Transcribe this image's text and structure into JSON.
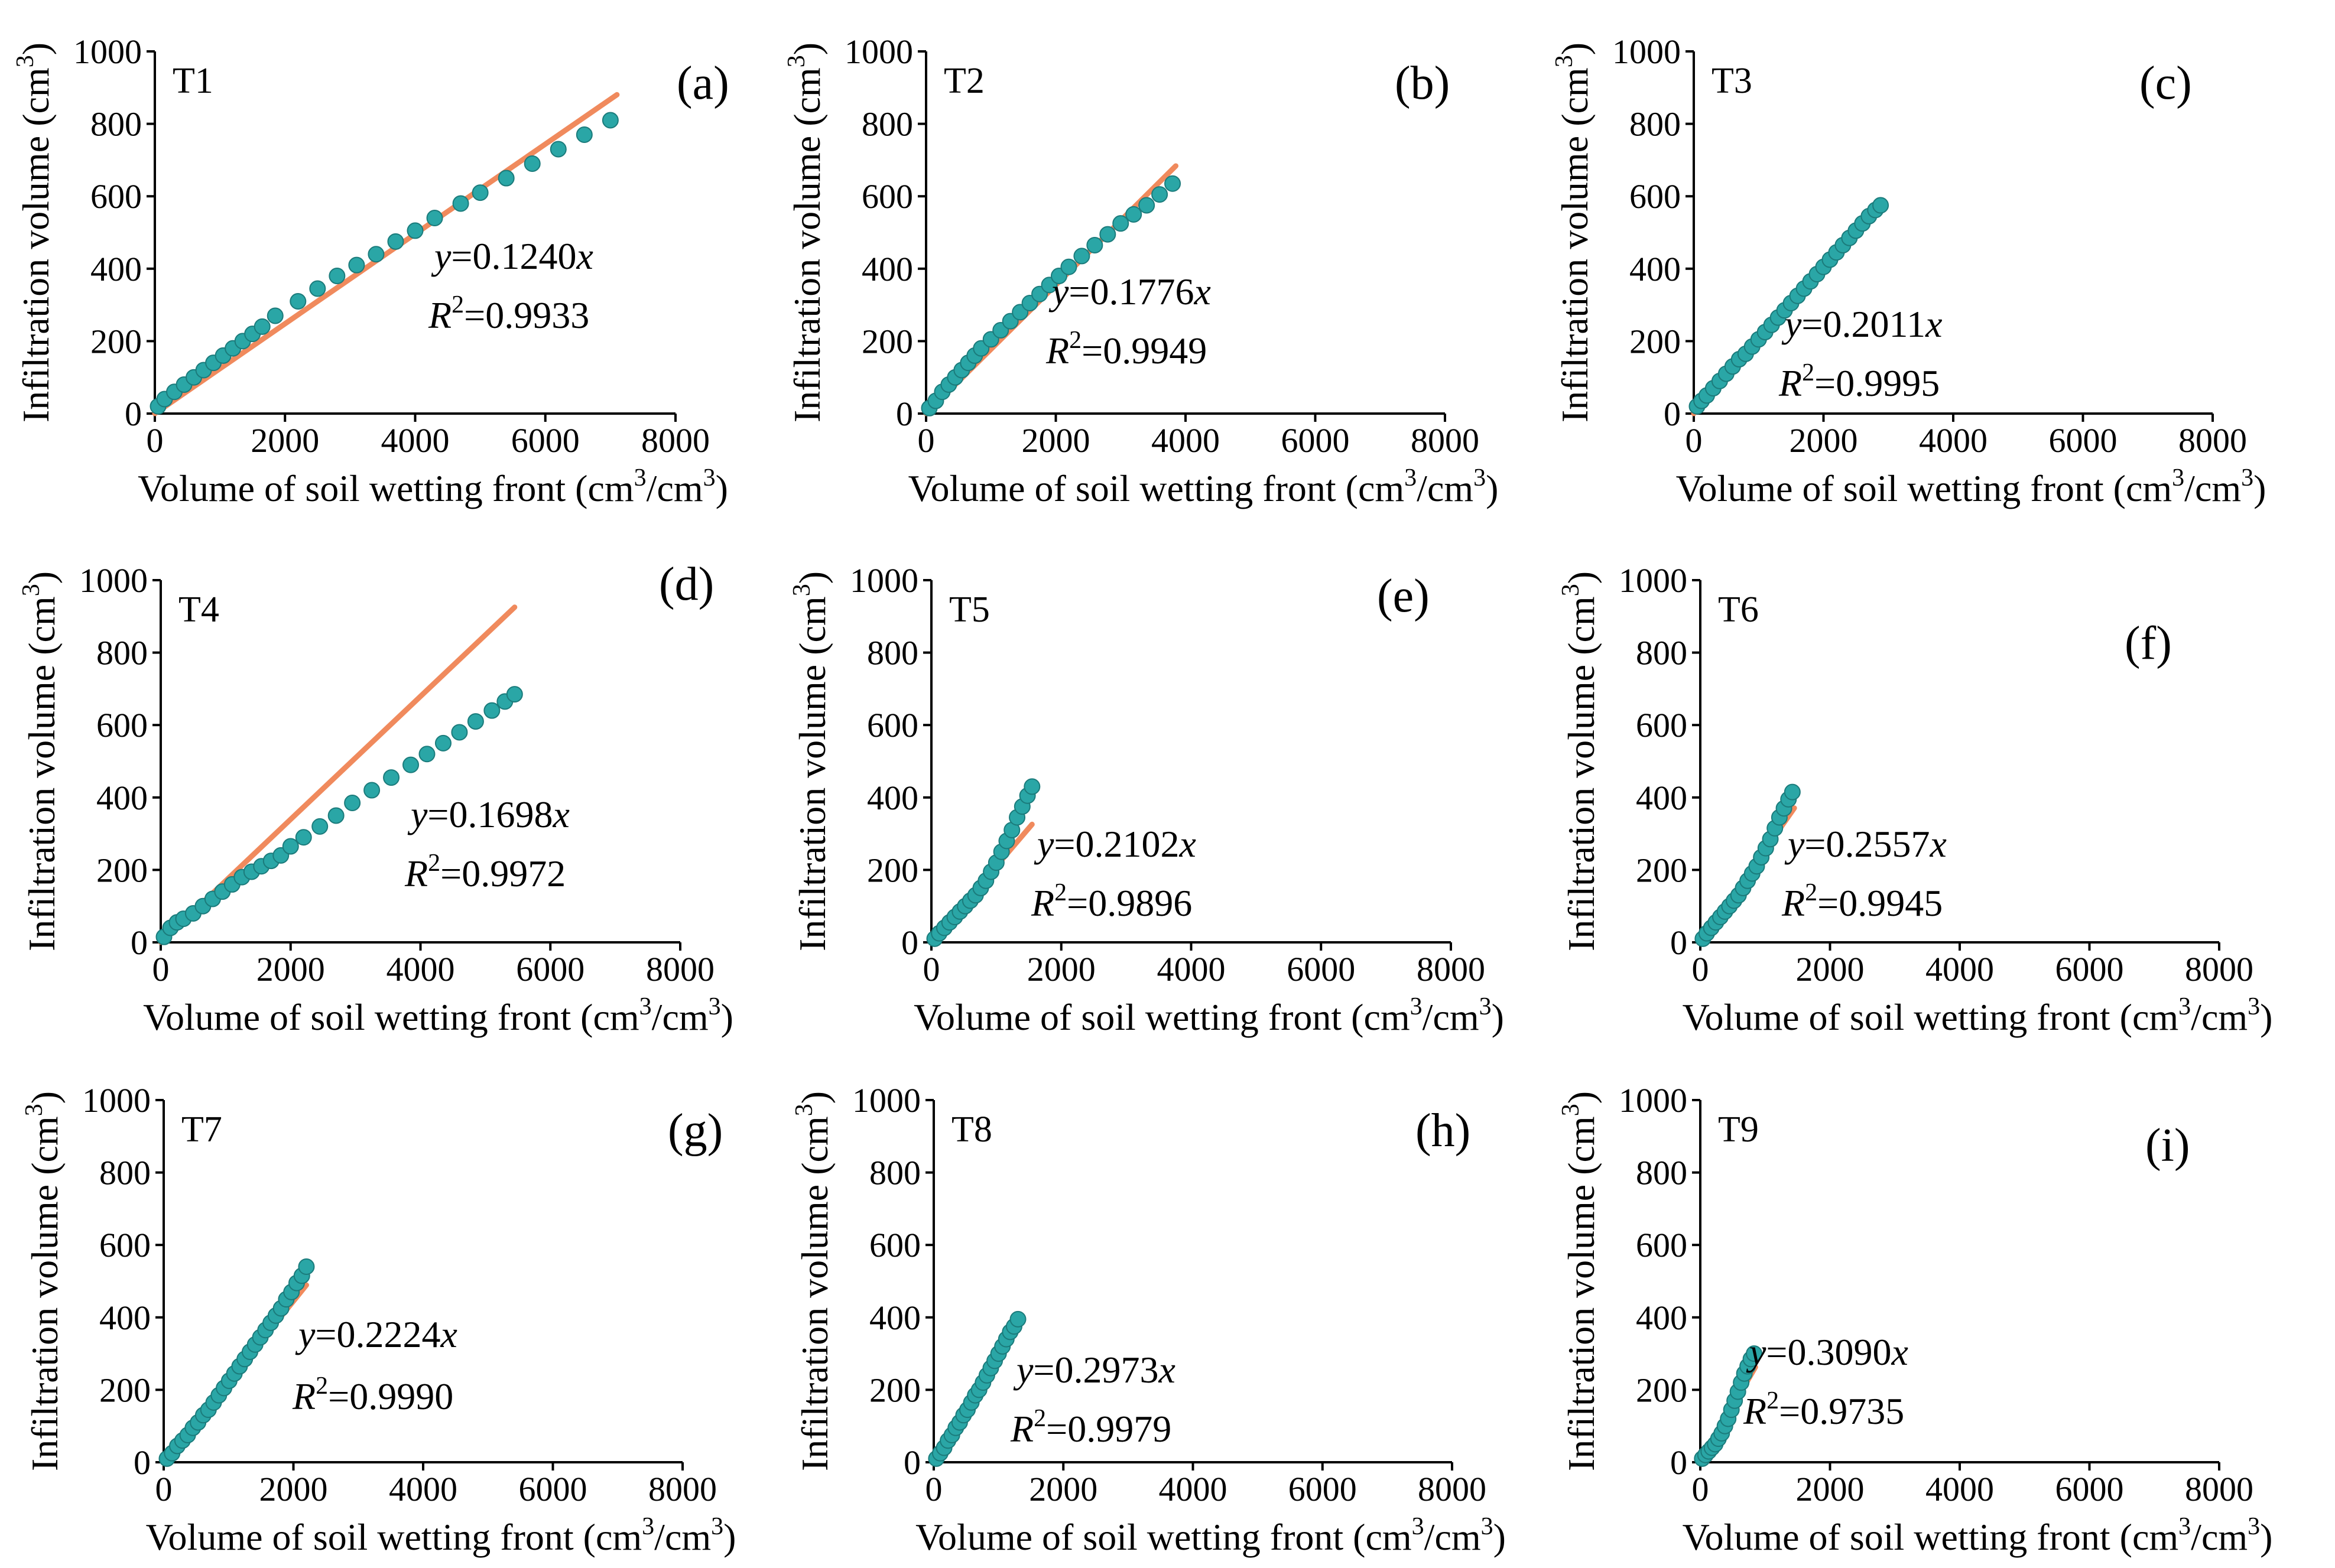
{
  "chart_data": [
    {
      "panel": "(a)",
      "treatment": "T1",
      "type": "scatter",
      "xlabel": "Volume of soil wetting front (cm3/cm3)",
      "ylabel": "Infiltration volume (cm3)",
      "xlim": [
        0,
        8000
      ],
      "ylim": [
        0,
        1000
      ],
      "xticks": [
        0,
        2000,
        4000,
        6000,
        8000
      ],
      "yticks": [
        0,
        200,
        400,
        600,
        800,
        1000
      ],
      "slope": 0.124,
      "equation": "y=0.1240x",
      "r2": "0.9933",
      "fit_x_max": 7100,
      "x": [
        50,
        150,
        300,
        450,
        600,
        750,
        900,
        1050,
        1200,
        1350,
        1500,
        1650,
        1850,
        2200,
        2500,
        2800,
        3100,
        3400,
        3700,
        4000,
        4300,
        4700,
        5000,
        5400,
        5800,
        6200,
        6600,
        7000
      ],
      "y": [
        20,
        40,
        60,
        80,
        100,
        120,
        140,
        160,
        180,
        200,
        220,
        240,
        270,
        310,
        345,
        380,
        410,
        440,
        475,
        505,
        540,
        580,
        610,
        650,
        690,
        730,
        770,
        810
      ]
    },
    {
      "panel": "(b)",
      "treatment": "T2",
      "type": "scatter",
      "xlabel": "Volume of soil wetting front (cm3/cm3)",
      "ylabel": "Infiltration volume (cm3)",
      "xlim": [
        0,
        8000
      ],
      "ylim": [
        0,
        1000
      ],
      "xticks": [
        0,
        2000,
        4000,
        6000,
        8000
      ],
      "yticks": [
        0,
        200,
        400,
        600,
        800,
        1000
      ],
      "slope": 0.1776,
      "equation": "y=0.1776x",
      "r2": "0.9949",
      "fit_x_max": 3850,
      "x": [
        50,
        150,
        250,
        350,
        450,
        550,
        650,
        750,
        850,
        1000,
        1150,
        1300,
        1450,
        1600,
        1750,
        1900,
        2050,
        2200,
        2400,
        2600,
        2800,
        3000,
        3200,
        3400,
        3600,
        3800
      ],
      "y": [
        15,
        35,
        60,
        80,
        100,
        120,
        140,
        160,
        180,
        205,
        230,
        255,
        280,
        305,
        330,
        355,
        380,
        405,
        435,
        465,
        495,
        525,
        550,
        575,
        605,
        635
      ]
    },
    {
      "panel": "(c)",
      "treatment": "T3",
      "type": "scatter",
      "xlabel": "Volume of soil wetting front (cm3/cm3)",
      "ylabel": "Infiltration volume (cm3)",
      "xlim": [
        0,
        8000
      ],
      "ylim": [
        0,
        1000
      ],
      "xticks": [
        0,
        2000,
        4000,
        6000,
        8000
      ],
      "yticks": [
        0,
        200,
        400,
        600,
        800,
        1000
      ],
      "slope": 0.2011,
      "equation": "y=0.2011x",
      "r2": "0.9995",
      "fit_x_max": 2880,
      "x": [
        50,
        120,
        200,
        300,
        400,
        500,
        600,
        700,
        800,
        900,
        1000,
        1100,
        1200,
        1300,
        1400,
        1500,
        1600,
        1700,
        1800,
        1900,
        2000,
        2100,
        2200,
        2300,
        2400,
        2500,
        2600,
        2700,
        2800,
        2880
      ],
      "y": [
        20,
        35,
        50,
        70,
        90,
        110,
        130,
        150,
        165,
        185,
        205,
        225,
        245,
        265,
        285,
        305,
        325,
        345,
        365,
        385,
        405,
        425,
        445,
        465,
        485,
        505,
        525,
        545,
        562,
        575
      ]
    },
    {
      "panel": "(d)",
      "treatment": "T4",
      "type": "scatter",
      "xlabel": "Volume of soil wetting front (cm3/cm3)",
      "ylabel": "Infiltration volume (cm3)",
      "xlim": [
        0,
        8000
      ],
      "ylim": [
        0,
        1000
      ],
      "xticks": [
        0,
        2000,
        4000,
        6000,
        8000
      ],
      "yticks": [
        0,
        200,
        400,
        600,
        800,
        1000
      ],
      "slope": 0.1698,
      "equation": "y=0.1698x",
      "r2": "0.9972",
      "fit_x_max": 5450,
      "x": [
        50,
        150,
        250,
        350,
        500,
        650,
        800,
        950,
        1100,
        1250,
        1400,
        1550,
        1700,
        1850,
        2000,
        2200,
        2450,
        2700,
        2950,
        3250,
        3550,
        3850,
        4100,
        4350,
        4600,
        4850,
        5100,
        5300,
        5450
      ],
      "y": [
        15,
        40,
        55,
        65,
        80,
        100,
        120,
        140,
        160,
        180,
        195,
        210,
        225,
        240,
        265,
        290,
        320,
        350,
        385,
        420,
        455,
        490,
        520,
        550,
        580,
        610,
        640,
        665,
        685
      ]
    },
    {
      "panel": "(e)",
      "treatment": "T5",
      "type": "scatter",
      "xlabel": "Volume of soil wetting front (cm3/cm3)",
      "ylabel": "Infiltration volume (cm3)",
      "xlim": [
        0,
        8000
      ],
      "ylim": [
        0,
        1000
      ],
      "xticks": [
        0,
        2000,
        4000,
        6000,
        8000
      ],
      "yticks": [
        0,
        200,
        400,
        600,
        800,
        1000
      ],
      "slope": 0.2102,
      "equation": "y=0.2102x",
      "r2": "0.9896",
      "fit_x_max": 1550,
      "x": [
        50,
        120,
        200,
        280,
        360,
        440,
        520,
        600,
        680,
        760,
        840,
        920,
        1000,
        1080,
        1160,
        1240,
        1320,
        1400,
        1480,
        1550
      ],
      "y": [
        10,
        25,
        40,
        55,
        70,
        85,
        100,
        115,
        130,
        150,
        170,
        195,
        220,
        250,
        280,
        310,
        345,
        375,
        405,
        430
      ]
    },
    {
      "panel": "(f)",
      "treatment": "T6",
      "type": "scatter",
      "xlabel": "Volume of soil wetting front (cm3/cm3)",
      "ylabel": "Infiltration volume (cm3)",
      "xlim": [
        0,
        8000
      ],
      "ylim": [
        0,
        1000
      ],
      "xticks": [
        0,
        2000,
        4000,
        6000,
        8000
      ],
      "yticks": [
        0,
        200,
        400,
        600,
        800,
        1000
      ],
      "slope": 0.2557,
      "equation": "y=0.2557x",
      "r2": "0.9945",
      "fit_x_max": 1450,
      "x": [
        40,
        100,
        170,
        240,
        310,
        380,
        450,
        520,
        590,
        660,
        730,
        800,
        870,
        940,
        1010,
        1080,
        1150,
        1220,
        1290,
        1360,
        1420
      ],
      "y": [
        10,
        25,
        40,
        55,
        70,
        85,
        100,
        115,
        130,
        150,
        170,
        190,
        210,
        235,
        260,
        285,
        315,
        345,
        370,
        395,
        415
      ]
    },
    {
      "panel": "(g)",
      "treatment": "T7",
      "type": "scatter",
      "xlabel": "Volume of soil wetting front (cm3/cm3)",
      "ylabel": "Infiltration volume (cm3)",
      "xlim": [
        0,
        8000
      ],
      "ylim": [
        0,
        1000
      ],
      "xticks": [
        0,
        2000,
        4000,
        6000,
        8000
      ],
      "yticks": [
        0,
        200,
        400,
        600,
        800,
        1000
      ],
      "slope": 0.2224,
      "equation": "y=0.2224x",
      "r2": "0.9990",
      "fit_x_max": 2200,
      "x": [
        50,
        130,
        210,
        290,
        370,
        450,
        530,
        610,
        690,
        770,
        850,
        930,
        1010,
        1090,
        1170,
        1250,
        1330,
        1410,
        1490,
        1570,
        1650,
        1730,
        1810,
        1890,
        1970,
        2050,
        2130,
        2200
      ],
      "y": [
        10,
        25,
        45,
        60,
        75,
        95,
        110,
        130,
        145,
        165,
        185,
        205,
        225,
        245,
        265,
        285,
        305,
        325,
        345,
        365,
        385,
        405,
        425,
        450,
        470,
        495,
        515,
        540
      ]
    },
    {
      "panel": "(h)",
      "treatment": "T8",
      "type": "scatter",
      "xlabel": "Volume of soil wetting front (cm3/cm3)",
      "ylabel": "Infiltration volume (cm3)",
      "xlim": [
        0,
        8000
      ],
      "ylim": [
        0,
        1000
      ],
      "xticks": [
        0,
        2000,
        4000,
        6000,
        8000
      ],
      "yticks": [
        0,
        200,
        400,
        600,
        800,
        1000
      ],
      "slope": 0.2973,
      "equation": "y=0.2973x",
      "r2": "0.9979",
      "fit_x_max": 1320,
      "x": [
        40,
        100,
        160,
        220,
        280,
        340,
        400,
        460,
        520,
        580,
        640,
        700,
        760,
        820,
        880,
        940,
        1000,
        1060,
        1120,
        1180,
        1240,
        1300
      ],
      "y": [
        10,
        25,
        40,
        60,
        75,
        95,
        110,
        130,
        145,
        165,
        185,
        200,
        220,
        240,
        260,
        280,
        300,
        320,
        340,
        360,
        375,
        395
      ]
    },
    {
      "panel": "(i)",
      "treatment": "T9",
      "type": "scatter",
      "xlabel": "Volume of soil wetting front (cm3/cm3)",
      "ylabel": "Infiltration volume (cm3)",
      "xlim": [
        0,
        8000
      ],
      "ylim": [
        0,
        1000
      ],
      "xticks": [
        0,
        2000,
        4000,
        6000,
        8000
      ],
      "yticks": [
        0,
        200,
        400,
        600,
        800,
        1000
      ],
      "slope": 0.309,
      "equation": "y=0.3090x",
      "r2": "0.9735",
      "fit_x_max": 850,
      "x": [
        30,
        80,
        130,
        180,
        230,
        280,
        330,
        380,
        430,
        480,
        530,
        580,
        630,
        680,
        730,
        780,
        830
      ],
      "y": [
        10,
        20,
        30,
        40,
        50,
        65,
        80,
        100,
        120,
        145,
        170,
        195,
        220,
        245,
        265,
        285,
        300
      ]
    }
  ],
  "colors": {
    "fit_line": "#f08a5d",
    "points": "#2aa6a6",
    "points_edge": "#1b7b7b"
  }
}
